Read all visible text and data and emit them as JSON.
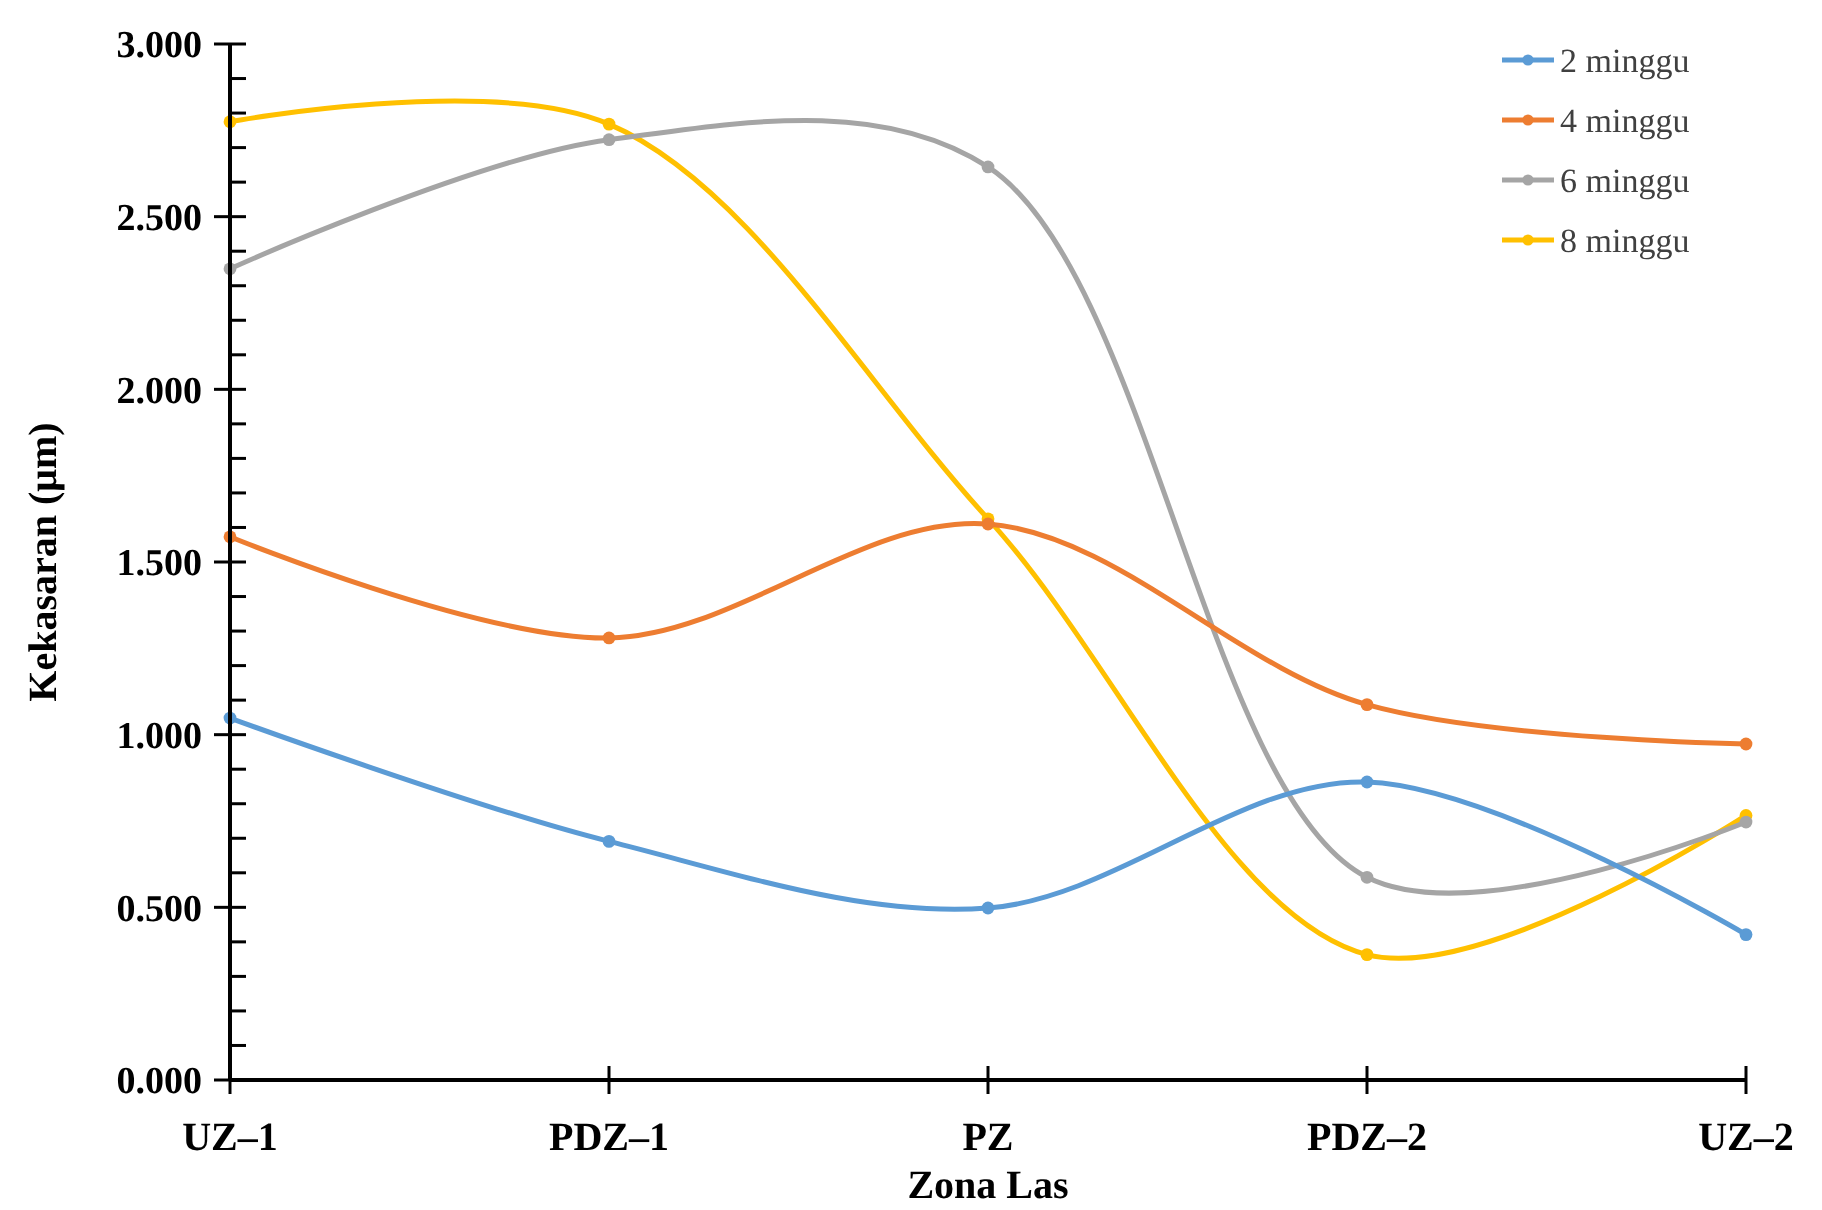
{
  "chart_data": {
    "type": "line",
    "xlabel": "Zona Las",
    "ylabel": "Kekasaran (μm)",
    "categories": [
      "UZ–1",
      "PDZ–1",
      "PZ",
      "PDZ–2",
      "UZ–2"
    ],
    "series": [
      {
        "name": "2 minggu",
        "color": "#5b9bd5",
        "values": [
          1.048,
          0.691,
          0.498,
          0.863,
          0.421
        ]
      },
      {
        "name": "4 minggu",
        "color": "#ed7d31",
        "values": [
          1.573,
          1.28,
          1.61,
          1.087,
          0.973
        ]
      },
      {
        "name": "6 minggu",
        "color": "#a5a5a5",
        "values": [
          2.349,
          2.723,
          2.644,
          0.587,
          0.747
        ]
      },
      {
        "name": "8 minggu",
        "color": "#ffc000",
        "values": [
          2.775,
          2.768,
          1.625,
          0.363,
          0.766
        ]
      }
    ],
    "ylim": [
      0,
      3
    ],
    "yticks": [
      {
        "value": 0,
        "label": "0.000"
      },
      {
        "value": 0.1,
        "label": null
      },
      {
        "value": 0.2,
        "label": null
      },
      {
        "value": 0.3,
        "label": null
      },
      {
        "value": 0.4,
        "label": null
      },
      {
        "value": 0.5,
        "label": "0.500"
      },
      {
        "value": 0.6,
        "label": null
      },
      {
        "value": 0.7,
        "label": null
      },
      {
        "value": 0.8,
        "label": null
      },
      {
        "value": 0.9,
        "label": null
      },
      {
        "value": 1,
        "label": "1.000"
      },
      {
        "value": 1.1,
        "label": null
      },
      {
        "value": 1.2,
        "label": null
      },
      {
        "value": 1.3,
        "label": null
      },
      {
        "value": 1.4,
        "label": null
      },
      {
        "value": 1.5,
        "label": "1.500"
      },
      {
        "value": 1.6,
        "label": null
      },
      {
        "value": 1.7,
        "label": null
      },
      {
        "value": 1.8,
        "label": null
      },
      {
        "value": 1.9,
        "label": null
      },
      {
        "value": 2,
        "label": "2.000"
      },
      {
        "value": 2.1,
        "label": null
      },
      {
        "value": 2.2,
        "label": null
      },
      {
        "value": 2.3,
        "label": null
      },
      {
        "value": 2.4,
        "label": null
      },
      {
        "value": 2.5,
        "label": "2.500"
      },
      {
        "value": 2.6,
        "label": null
      },
      {
        "value": 2.7,
        "label": null
      },
      {
        "value": 2.8,
        "label": null
      },
      {
        "value": 2.9,
        "label": null
      },
      {
        "value": 3,
        "label": "3.000"
      }
    ],
    "legend": "top right",
    "marker": "circle",
    "line_style": "solid",
    "grid": false
  }
}
